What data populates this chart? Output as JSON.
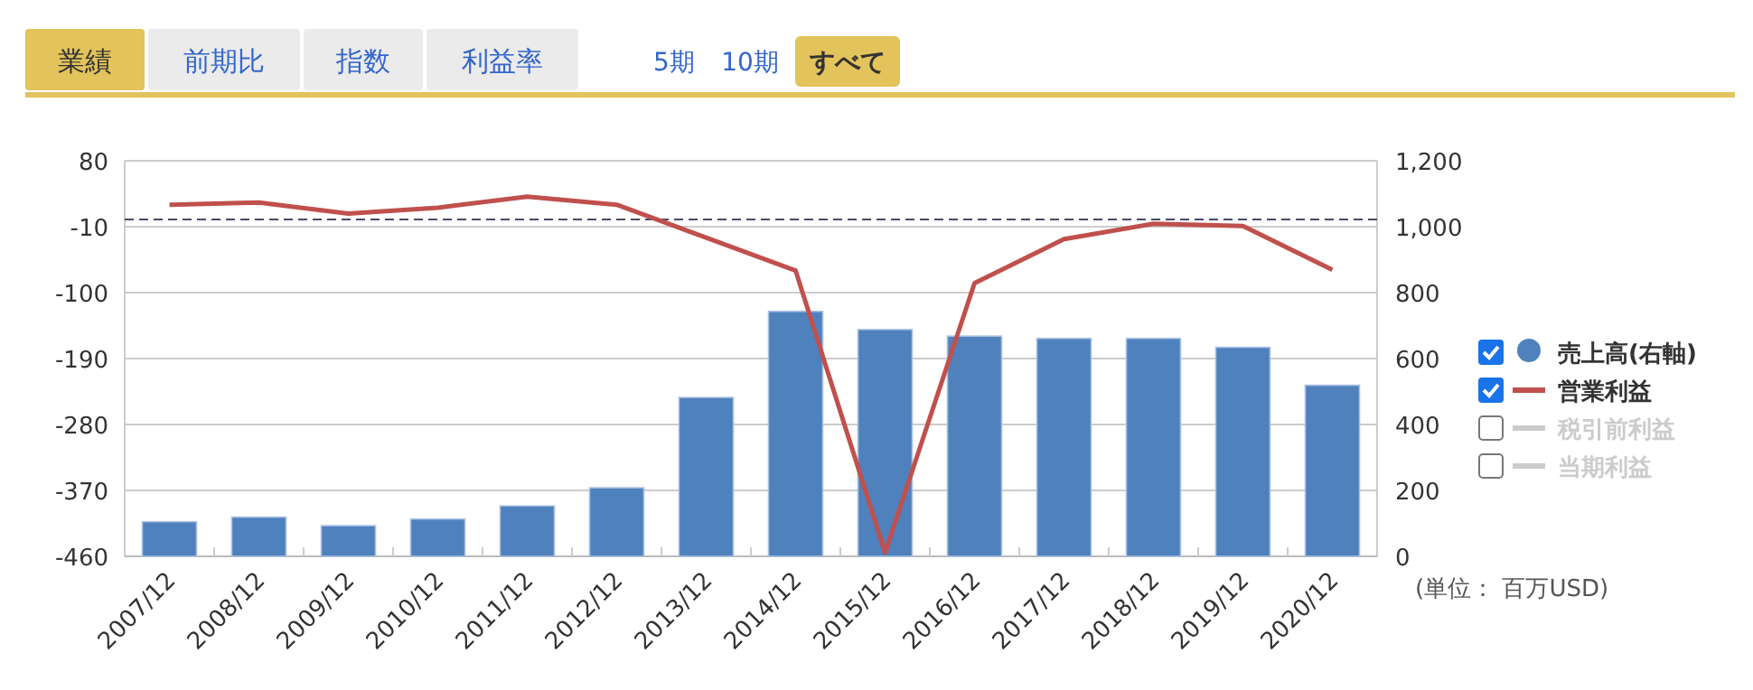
{
  "chart_data": {
    "type": "bar",
    "categories": [
      "2007/12",
      "2008/12",
      "2009/12",
      "2010/12",
      "2011/12",
      "2012/12",
      "2013/12",
      "2014/12",
      "2015/12",
      "2016/12",
      "2017/12",
      "2018/12",
      "2019/12",
      "2020/12"
    ],
    "series": [
      {
        "name": "売上高(右軸)",
        "axis": "y2",
        "color": "#4f81bd",
        "values": [
          105,
          119,
          93,
          113,
          153,
          208,
          482,
          743,
          688,
          668,
          661,
          661,
          634,
          519
        ]
      },
      {
        "name": "営業利益",
        "type": "line",
        "color": "#c0504d",
        "values": [
          20,
          23,
          8,
          16,
          31,
          20,
          -25,
          -70,
          -455,
          -87,
          -27,
          -6,
          -9,
          -69
        ]
      },
      {
        "name": "税引前利益",
        "type": "line",
        "color": "#cccccc",
        "values": [
          null,
          null,
          null,
          null,
          null,
          null,
          null,
          null,
          null,
          null,
          null,
          null,
          null,
          null
        ]
      },
      {
        "name": "当期利益",
        "type": "line",
        "color": "#cccccc",
        "values": [
          null,
          null,
          null,
          null,
          null,
          null,
          null,
          null,
          null,
          null,
          null,
          null,
          null,
          null
        ]
      }
    ],
    "ylim": [
      -460,
      80
    ],
    "yticks": [
      80,
      -10,
      -100,
      -190,
      -280,
      -370,
      -460
    ],
    "y2lim": [
      0,
      1200
    ],
    "y2ticks": [
      0,
      200,
      400,
      600,
      800,
      {
        "value": 1000,
        "label": "1,000"
      },
      {
        "value": 1200,
        "label": "1,200"
      }
    ],
    "ref_lines": [
      {
        "axis": "y",
        "value": 0,
        "color": "#4a4a6a",
        "line_style": "dashed"
      }
    ],
    "grid": "y",
    "legend": "right",
    "annotations": [
      "業績",
      "前期比",
      "指数",
      "利益率",
      "5期",
      "10期",
      "すべて",
      "(単位： 百万USD)"
    ]
  }
}
